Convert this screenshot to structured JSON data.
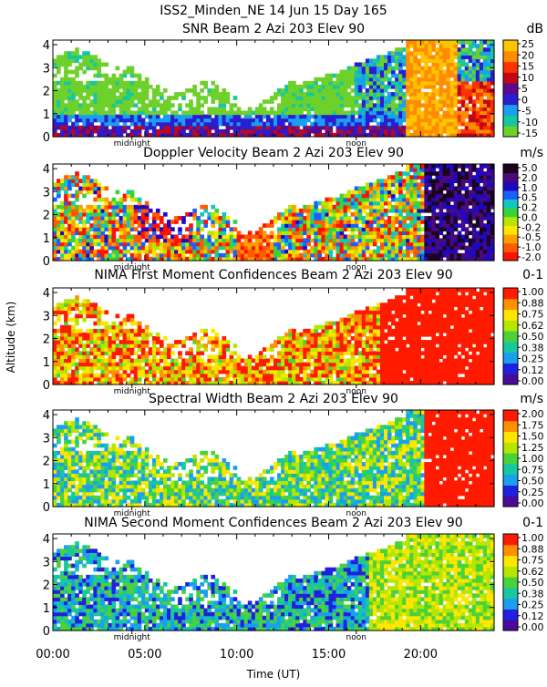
{
  "figure": {
    "title": "ISS2_Minden_NE  14 Jun 15 Day 165",
    "ylabel": "Altitude (km)",
    "xlabel": "Time (UT)",
    "x_ticks": [
      "00:00",
      "05:00",
      "10:00",
      "15:00",
      "20:00"
    ],
    "midnight_label": "midnight",
    "noon_label": "noon"
  },
  "chart_data": [
    {
      "type": "heatmap",
      "title": "SNR Beam 2 Azi 203 Elev 90",
      "units": "dB",
      "xlabel": "Time (UT)",
      "ylabel": "Altitude (km)",
      "xlim": [
        0,
        24
      ],
      "ylim": [
        0,
        4.2
      ],
      "y_ticks": [
        "0",
        "1",
        "2",
        "3",
        "4"
      ],
      "colorbar_ticks": [
        "25",
        "20",
        "15",
        "10",
        "5",
        "0",
        "-5",
        "-10",
        "-15"
      ],
      "colors": [
        "#6ed02a",
        "#17c7a0",
        "#1a9ff0",
        "#2a1fd0",
        "#5a0a8a",
        "#c00818",
        "#ff3000",
        "#ff8c00",
        "#ffc400"
      ]
    },
    {
      "type": "heatmap",
      "title": "Doppler Velocity Beam 2 Azi 203 Elev 90",
      "units": "m/s",
      "xlabel": "Time (UT)",
      "ylabel": "Altitude (km)",
      "xlim": [
        0,
        24
      ],
      "ylim": [
        0,
        4.2
      ],
      "y_ticks": [
        "0",
        "1",
        "2",
        "3",
        "4"
      ],
      "colorbar_ticks": [
        "5.0",
        "2.0",
        "1.0",
        "0.5",
        "0.2",
        "0.0",
        "-0.2",
        "-0.5",
        "-1.0",
        "-2.0"
      ],
      "colors": [
        "#ff1000",
        "#ff5a00",
        "#ffa000",
        "#ffe600",
        "#b6e600",
        "#3ad23a",
        "#10c8c0",
        "#1860ff",
        "#2008c0",
        "#4a0a7a",
        "#1a0420"
      ]
    },
    {
      "type": "heatmap",
      "title": "NIMA First Moment Confidences Beam 2 Azi 203 Elev 90",
      "units": "0-1",
      "xlabel": "Time (UT)",
      "ylabel": "Altitude (km)",
      "xlim": [
        0,
        24
      ],
      "ylim": [
        0,
        4.2
      ],
      "y_ticks": [
        "0",
        "1",
        "2",
        "3",
        "4"
      ],
      "colorbar_ticks": [
        "1.00",
        "0.88",
        "0.75",
        "0.62",
        "0.50",
        "0.38",
        "0.25",
        "0.12",
        "0.00"
      ],
      "colors": [
        "#4a0a9a",
        "#2020e0",
        "#1a9ff0",
        "#17c7a0",
        "#4ad23a",
        "#b6e600",
        "#ffe600",
        "#ff9000",
        "#ff1a00"
      ]
    },
    {
      "type": "heatmap",
      "title": "Spectral Width Beam 2 Azi 203 Elev 90",
      "units": "m/s",
      "xlabel": "Time (UT)",
      "ylabel": "Altitude (km)",
      "xlim": [
        0,
        24
      ],
      "ylim": [
        0,
        4.2
      ],
      "y_ticks": [
        "0",
        "1",
        "2",
        "3",
        "4"
      ],
      "colorbar_ticks": [
        "2.00",
        "1.75",
        "1.50",
        "1.25",
        "1.00",
        "0.75",
        "0.50",
        "0.25",
        "0.00"
      ],
      "colors": [
        "#4a0a9a",
        "#2020e0",
        "#1a9ff0",
        "#17c7a0",
        "#4ad23a",
        "#b6e600",
        "#ffe600",
        "#ff9000",
        "#ff1a00"
      ]
    },
    {
      "type": "heatmap",
      "title": "NIMA Second Moment Confidences Beam 2 Azi 203 Elev 90",
      "units": "0-1",
      "xlabel": "Time (UT)",
      "ylabel": "Altitude (km)",
      "xlim": [
        0,
        24
      ],
      "ylim": [
        0,
        4.2
      ],
      "y_ticks": [
        "0",
        "1",
        "2",
        "3",
        "4"
      ],
      "colorbar_ticks": [
        "1.00",
        "0.88",
        "0.75",
        "0.62",
        "0.50",
        "0.38",
        "0.25",
        "0.12",
        "0.00"
      ],
      "colors": [
        "#4a0a9a",
        "#2020e0",
        "#1a9ff0",
        "#17c7a0",
        "#4ad23a",
        "#b6e600",
        "#ffe600",
        "#ff9000",
        "#ff1a00"
      ]
    }
  ]
}
